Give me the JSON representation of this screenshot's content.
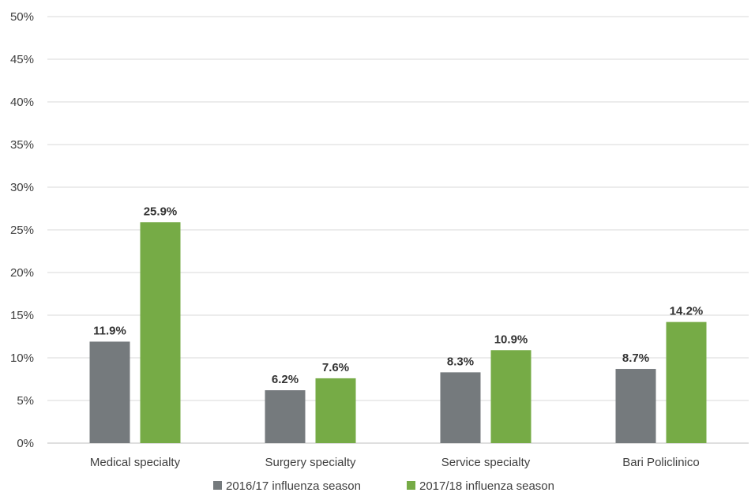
{
  "chart_data": {
    "type": "bar",
    "categories": [
      "Medical specialty",
      "Surgery specialty",
      "Service specialty",
      "Bari Policlinico"
    ],
    "series": [
      {
        "name": "2016/17 influenza season",
        "values": [
          11.9,
          6.2,
          8.3,
          8.7
        ],
        "labels": [
          "11.9%",
          "6.2%",
          "8.3%",
          "8.7%"
        ],
        "color": "#757a7d"
      },
      {
        "name": "2017/18 influenza season",
        "values": [
          25.9,
          7.6,
          10.9,
          14.2
        ],
        "labels": [
          "25.9%",
          "7.6%",
          "10.9%",
          "14.2%"
        ],
        "color": "#76ab46"
      }
    ],
    "y_ticks": [
      "0%",
      "5%",
      "10%",
      "15%",
      "20%",
      "25%",
      "30%",
      "35%",
      "40%",
      "45%",
      "50%"
    ],
    "ylim": [
      0,
      50
    ],
    "grid": true,
    "legend_position": "bottom"
  },
  "colors": {
    "axis_text": "#404040",
    "gridline": "#d9d9d9",
    "label_text": "#333333"
  }
}
